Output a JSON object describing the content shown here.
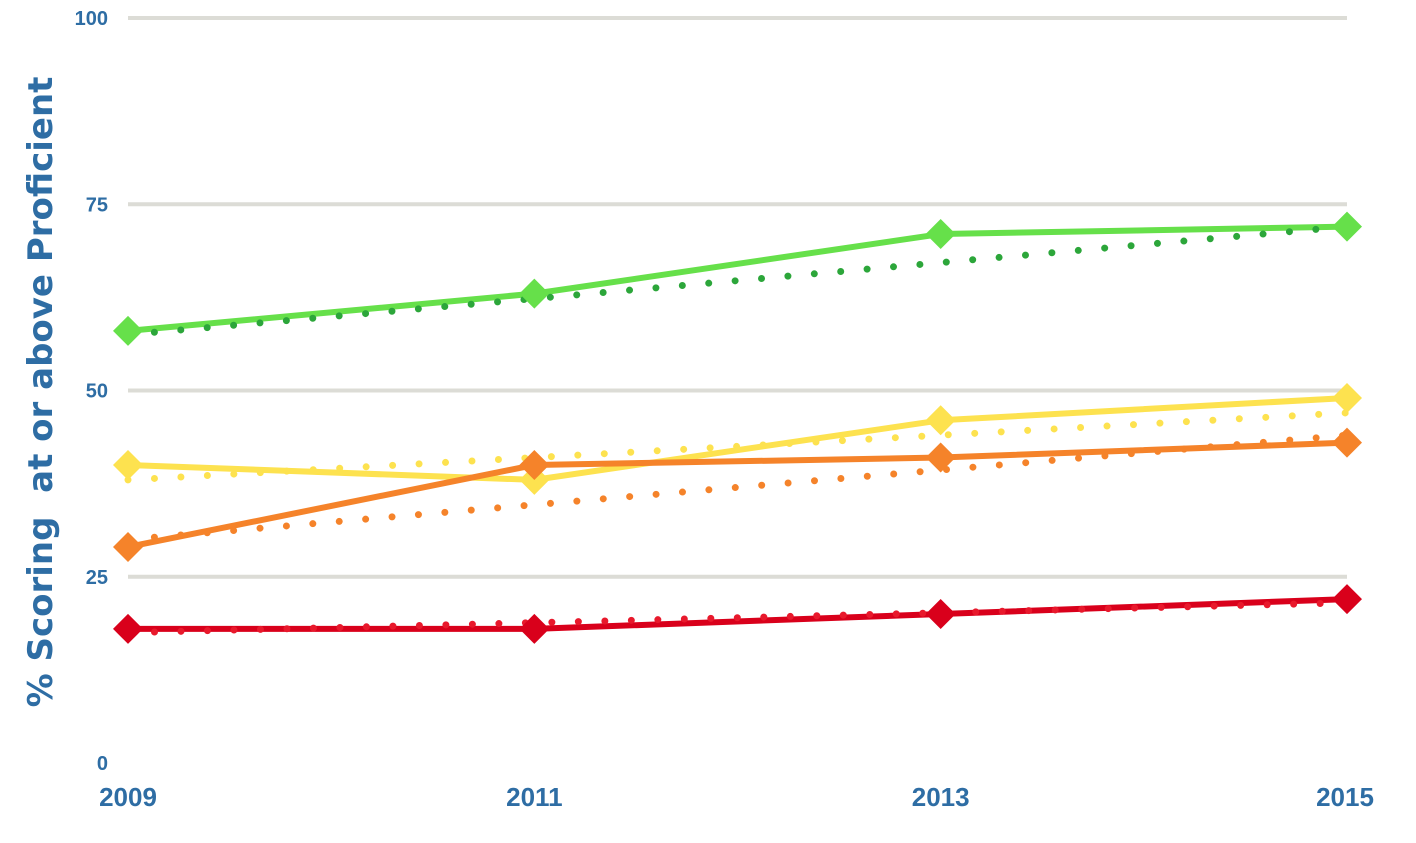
{
  "chart_data": {
    "type": "line",
    "title": "",
    "xlabel": "",
    "ylabel": "% Scoring  at or above Proficient",
    "x": [
      "2009",
      "2011",
      "2013",
      "2015"
    ],
    "ylim": [
      0,
      100
    ],
    "yticks": [
      "0",
      "25",
      "50",
      "75",
      "100"
    ],
    "grid": true,
    "series": [
      {
        "values": [
          58,
          63,
          71,
          72
        ],
        "color": "#66e04a",
        "marker": "diamond",
        "trend": {
          "start": 57.5,
          "end": 72,
          "color": "#2ca63a"
        }
      },
      {
        "values": [
          40,
          38,
          46,
          49
        ],
        "color": "#fde24f",
        "marker": "diamond",
        "trend": {
          "start": 38,
          "end": 47,
          "color": "#fde24f"
        }
      },
      {
        "values": [
          29,
          40,
          41,
          43
        ],
        "color": "#f5832a",
        "marker": "diamond",
        "trend": {
          "start": 30,
          "end": 44,
          "color": "#f5832a"
        }
      },
      {
        "values": [
          18,
          18,
          20,
          22
        ],
        "color": "#d9001b",
        "marker": "diamond",
        "trend": {
          "start": 17.5,
          "end": 21.5,
          "color": "#e8192c"
        }
      }
    ]
  }
}
